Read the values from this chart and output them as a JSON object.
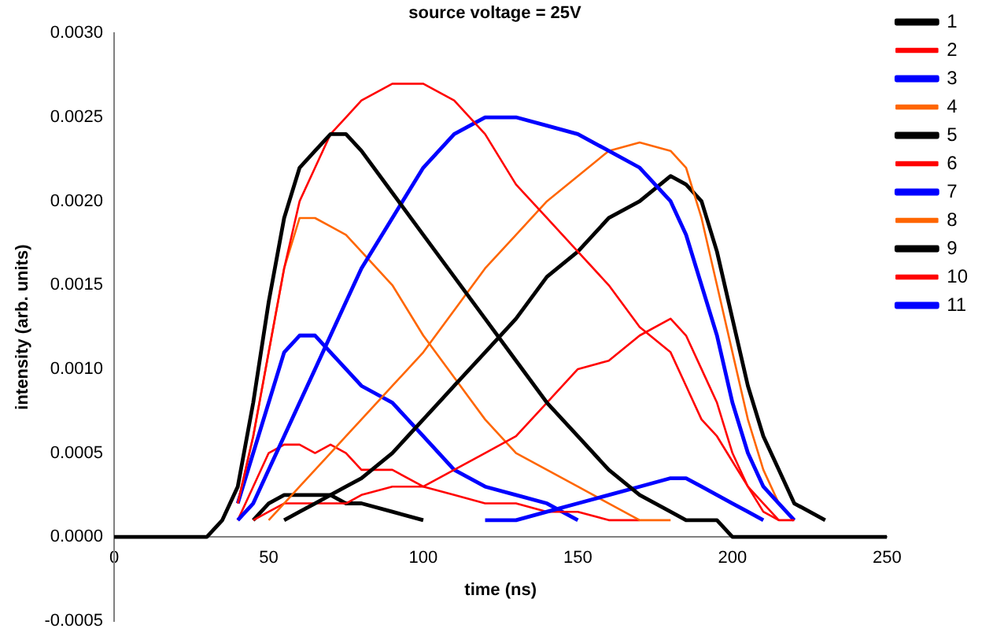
{
  "chart_data": {
    "type": "line",
    "title": "source voltage = 25V",
    "xlabel": "time (ns)",
    "ylabel": "intensity (arb. units)",
    "x": [
      0,
      10,
      20,
      30,
      35,
      40,
      45,
      50,
      55,
      60,
      65,
      70,
      75,
      80,
      90,
      100,
      110,
      120,
      130,
      140,
      150,
      160,
      170,
      180,
      185,
      190,
      195,
      200,
      205,
      210,
      215,
      220,
      230,
      240,
      250
    ],
    "xlim": [
      0,
      250
    ],
    "xticks": [
      0,
      50,
      100,
      150,
      200,
      250
    ],
    "ylim": [
      -0.0005,
      0.003
    ],
    "yticks": [
      {
        "value": -0.0005,
        "label": "-0.0005"
      },
      {
        "value": 0,
        "label": "0.0000"
      },
      {
        "value": 0.0005,
        "label": "0.0005"
      },
      {
        "value": 0.001,
        "label": "0.0010"
      },
      {
        "value": 0.0015,
        "label": "0.0015"
      },
      {
        "value": 0.002,
        "label": "0.0020"
      },
      {
        "value": 0.0025,
        "label": "0.0025"
      },
      {
        "value": 0.003,
        "label": "0.0030"
      }
    ],
    "grid": false,
    "legend": "top right",
    "line_style": "solid",
    "series": [
      {
        "name": "1",
        "color": "#000000",
        "values": [
          0,
          0,
          0,
          0,
          0.0001,
          0.0003,
          0.0008,
          0.0014,
          0.0019,
          0.0022,
          0.0023,
          0.0024,
          0.0024,
          0.0023,
          0.00205,
          0.0018,
          0.00155,
          0.0013,
          0.00105,
          0.0008,
          0.0006,
          0.0004,
          0.00025,
          0.00015,
          0.0001,
          0.0001,
          0.0001,
          0,
          0,
          0,
          0,
          0,
          0,
          0,
          0
        ]
      },
      {
        "name": "2",
        "color": "#ff0000",
        "values": [
          null,
          null,
          null,
          null,
          null,
          0.0002,
          0.0006,
          0.0011,
          0.0016,
          0.002,
          0.0022,
          0.0024,
          0.0025,
          0.0026,
          0.0027,
          0.0027,
          0.0026,
          0.0024,
          0.0021,
          0.0019,
          0.0017,
          0.0015,
          0.00125,
          0.0011,
          0.0009,
          0.0007,
          0.0006,
          0.00045,
          0.0003,
          0.00015,
          0.0001,
          0.0001,
          null,
          null,
          null
        ]
      },
      {
        "name": "3",
        "color": "#0000ff",
        "values": [
          null,
          null,
          null,
          null,
          null,
          0.0001,
          0.0002,
          0.0004,
          0.0006,
          0.0008,
          0.001,
          0.0012,
          0.0014,
          0.0016,
          0.0019,
          0.0022,
          0.0024,
          0.0025,
          0.0025,
          0.00245,
          0.0024,
          0.0023,
          0.0022,
          0.002,
          0.0018,
          0.0015,
          0.0012,
          0.0008,
          0.0005,
          0.0003,
          0.0002,
          0.0001,
          null,
          null,
          null
        ]
      },
      {
        "name": "4",
        "color": "#ff6600",
        "values": [
          null,
          null,
          null,
          null,
          null,
          null,
          null,
          0.0001,
          0.0002,
          0.0003,
          0.0004,
          0.0005,
          0.0006,
          0.0007,
          0.0009,
          0.0011,
          0.00135,
          0.0016,
          0.0018,
          0.002,
          0.00215,
          0.0023,
          0.00235,
          0.0023,
          0.0022,
          0.0019,
          0.0015,
          0.0011,
          0.0007,
          0.0004,
          0.0002,
          0.0001,
          null,
          null,
          null
        ]
      },
      {
        "name": "5",
        "color": "#000000",
        "values": [
          null,
          null,
          null,
          null,
          null,
          null,
          null,
          null,
          0.0001,
          0.00015,
          0.0002,
          0.00025,
          0.0003,
          0.00035,
          0.0005,
          0.0007,
          0.0009,
          0.0011,
          0.0013,
          0.00155,
          0.0017,
          0.0019,
          0.002,
          0.00215,
          0.0021,
          0.002,
          0.0017,
          0.0013,
          0.0009,
          0.0006,
          0.0004,
          0.0002,
          0.0001,
          null,
          null
        ]
      },
      {
        "name": "6",
        "color": "#ff0000",
        "values": [
          null,
          null,
          null,
          null,
          null,
          null,
          0.0001,
          0.00015,
          0.0002,
          0.0002,
          0.0002,
          0.0002,
          0.0002,
          0.00025,
          0.0003,
          0.0003,
          0.0004,
          0.0005,
          0.0006,
          0.0008,
          0.001,
          0.00105,
          0.0012,
          0.0013,
          0.0012,
          0.001,
          0.0008,
          0.0005,
          0.0003,
          0.0002,
          0.0001,
          null,
          null,
          null,
          null
        ]
      },
      {
        "name": "7",
        "color": "#0000ff",
        "values": [
          null,
          null,
          null,
          null,
          null,
          null,
          null,
          null,
          null,
          null,
          null,
          null,
          null,
          null,
          null,
          null,
          null,
          0.0001,
          0.0001,
          0.00015,
          0.0002,
          0.00025,
          0.0003,
          0.00035,
          0.00035,
          0.0003,
          0.00025,
          0.0002,
          0.00015,
          0.0001,
          null,
          null,
          null,
          null,
          null
        ]
      },
      {
        "name": "8",
        "color": "#ff6600",
        "values": [
          null,
          null,
          null,
          null,
          null,
          0.0002,
          0.0006,
          0.0011,
          0.0016,
          0.0019,
          0.0019,
          0.00185,
          0.0018,
          0.0017,
          0.0015,
          0.0012,
          0.00095,
          0.0007,
          0.0005,
          0.0004,
          0.0003,
          0.0002,
          0.0001,
          0.0001,
          null,
          null,
          null,
          null,
          null,
          null,
          null,
          null,
          null,
          null,
          null
        ]
      },
      {
        "name": "9",
        "color": "#000000",
        "values": [
          null,
          null,
          null,
          null,
          null,
          null,
          0.0001,
          0.0002,
          0.00025,
          0.00025,
          0.00025,
          0.00025,
          0.0002,
          0.0002,
          0.00015,
          0.0001,
          null,
          null,
          null,
          null,
          null,
          null,
          null,
          null,
          null,
          null,
          null,
          null,
          null,
          null,
          null,
          null,
          null,
          null,
          null
        ]
      },
      {
        "name": "10",
        "color": "#ff0000",
        "values": [
          null,
          null,
          null,
          null,
          null,
          0.0001,
          0.0003,
          0.0005,
          0.00055,
          0.00055,
          0.0005,
          0.00055,
          0.0005,
          0.0004,
          0.0004,
          0.0003,
          0.00025,
          0.0002,
          0.0002,
          0.00015,
          0.00015,
          0.0001,
          0.0001,
          null,
          null,
          null,
          null,
          null,
          null,
          null,
          null,
          null,
          null,
          null,
          null
        ]
      },
      {
        "name": "11",
        "color": "#0000ff",
        "values": [
          null,
          null,
          null,
          null,
          null,
          0.0002,
          0.0005,
          0.0008,
          0.0011,
          0.0012,
          0.0012,
          0.0011,
          0.001,
          0.0009,
          0.0008,
          0.0006,
          0.0004,
          0.0003,
          0.00025,
          0.0002,
          0.0001,
          null,
          null,
          null,
          null,
          null,
          null,
          null,
          null,
          null,
          null,
          null,
          null,
          null,
          null
        ]
      }
    ]
  }
}
